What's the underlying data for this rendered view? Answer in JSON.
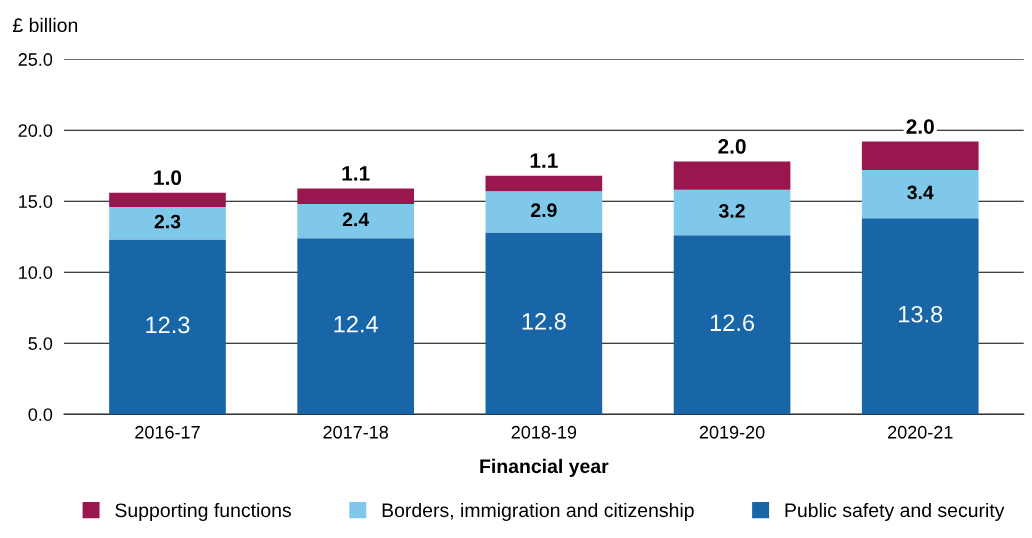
{
  "chart_data": {
    "type": "bar",
    "stacked": true,
    "ylabel": "£ billion",
    "xlabel": "Financial year",
    "categories": [
      "2016-17",
      "2017-18",
      "2018-19",
      "2019-20",
      "2020-21"
    ],
    "series": [
      {
        "name": "Public safety and security",
        "color": "#1866a8",
        "values": [
          12.3,
          12.4,
          12.8,
          12.6,
          13.8
        ],
        "value_labels": [
          "12.3",
          "12.4",
          "12.8",
          "12.6",
          "13.8"
        ]
      },
      {
        "name": "Borders, immigration and citizenship",
        "color": "#80c8ea",
        "values": [
          2.3,
          2.4,
          2.9,
          3.2,
          3.4
        ],
        "value_labels": [
          "2.3",
          "2.4",
          "2.9",
          "3.2",
          "3.4"
        ]
      },
      {
        "name": "Supporting functions",
        "color": "#99164f",
        "values": [
          1.0,
          1.1,
          1.1,
          2.0,
          2.0
        ],
        "value_labels": [
          "1.0",
          "1.1",
          "1.1",
          "2.0",
          "2.0"
        ]
      }
    ],
    "ylim": [
      0,
      25
    ],
    "yticks": [
      {
        "value": 0,
        "label": "0.0"
      },
      {
        "value": 5,
        "label": "5.0"
      },
      {
        "value": 10,
        "label": "10.0"
      },
      {
        "value": 15,
        "label": "15.0"
      },
      {
        "value": 20,
        "label": "20.0"
      },
      {
        "value": 25,
        "label": "25.0"
      }
    ],
    "grid": "y",
    "legend": "bottom"
  }
}
